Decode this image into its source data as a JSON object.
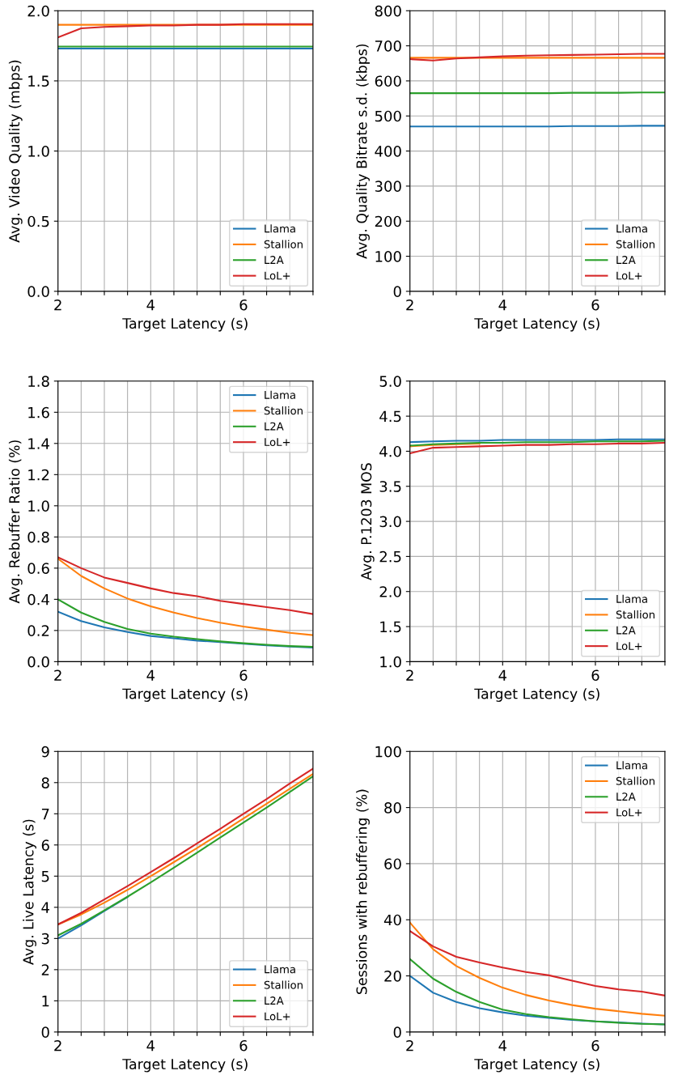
{
  "chart_data": [
    {
      "type": "line",
      "xlabel": "Target Latency (s)",
      "ylabel": "Avg. Video Quality (mbps)",
      "x": [
        2,
        2.5,
        3,
        3.5,
        4,
        4.5,
        5,
        5.5,
        6,
        6.5,
        7,
        7.5
      ],
      "xlim": [
        2,
        7.5
      ],
      "xticks": [
        2,
        {
          "value": 2.5,
          "label": null
        },
        {
          "value": 3,
          "label": null
        },
        {
          "value": 3.5,
          "label": null
        },
        4,
        {
          "value": 4.5,
          "label": null
        },
        {
          "value": 5,
          "label": null
        },
        {
          "value": 5.5,
          "label": null
        },
        6,
        {
          "value": 6.5,
          "label": null
        },
        {
          "value": 7,
          "label": null
        },
        {
          "value": 7.5,
          "label": null
        }
      ],
      "ylim": [
        0,
        2
      ],
      "yticks": [
        {
          "value": 0,
          "label": "0.0"
        },
        0.5,
        {
          "value": 1,
          "label": "1.0"
        },
        1.5,
        {
          "value": 2,
          "label": "2.0"
        }
      ],
      "grid": true,
      "legend": "bottom right",
      "series": [
        {
          "name": "Llama",
          "color": "#1f77b4",
          "values": [
            1.73,
            1.73,
            1.73,
            1.73,
            1.73,
            1.73,
            1.73,
            1.73,
            1.73,
            1.73,
            1.73,
            1.73
          ]
        },
        {
          "name": "Stallion",
          "color": "#ff7f0e",
          "values": [
            1.9,
            1.9,
            1.9,
            1.9,
            1.9,
            1.9,
            1.9,
            1.9,
            1.9,
            1.9,
            1.9,
            1.9
          ]
        },
        {
          "name": "L2A",
          "color": "#2ca02c",
          "values": [
            1.745,
            1.745,
            1.745,
            1.745,
            1.745,
            1.745,
            1.745,
            1.745,
            1.745,
            1.745,
            1.745,
            1.745
          ]
        },
        {
          "name": "LoL+",
          "color": "#d62728",
          "values": [
            1.81,
            1.875,
            1.885,
            1.89,
            1.895,
            1.895,
            1.9,
            1.9,
            1.905,
            1.905,
            1.905,
            1.905
          ]
        }
      ]
    },
    {
      "type": "line",
      "xlabel": "Target Latency (s)",
      "ylabel": "Avg. Quality Bitrate s.d. (kbps)",
      "x": [
        2,
        2.5,
        3,
        3.5,
        4,
        4.5,
        5,
        5.5,
        6,
        6.5,
        7,
        7.5
      ],
      "xlim": [
        2,
        7.5
      ],
      "xticks": [
        2,
        {
          "value": 2.5,
          "label": null
        },
        {
          "value": 3,
          "label": null
        },
        {
          "value": 3.5,
          "label": null
        },
        4,
        {
          "value": 4.5,
          "label": null
        },
        {
          "value": 5,
          "label": null
        },
        {
          "value": 5.5,
          "label": null
        },
        6,
        {
          "value": 6.5,
          "label": null
        },
        {
          "value": 7,
          "label": null
        },
        {
          "value": 7.5,
          "label": null
        }
      ],
      "ylim": [
        0,
        800
      ],
      "yticks": [
        0,
        100,
        200,
        300,
        400,
        500,
        600,
        700,
        800
      ],
      "grid": true,
      "legend": "bottom right",
      "series": [
        {
          "name": "Llama",
          "color": "#1f77b4",
          "values": [
            470,
            470,
            470,
            470,
            470,
            470,
            470,
            471,
            471,
            471,
            472,
            472
          ]
        },
        {
          "name": "Stallion",
          "color": "#ff7f0e",
          "values": [
            666,
            666,
            666,
            666,
            666,
            666,
            666,
            666,
            666,
            666,
            666,
            666
          ]
        },
        {
          "name": "L2A",
          "color": "#2ca02c",
          "values": [
            565,
            565,
            565,
            565,
            565,
            565,
            565,
            566,
            566,
            566,
            567,
            567
          ]
        },
        {
          "name": "LoL+",
          "color": "#d62728",
          "values": [
            662,
            658,
            664,
            667,
            670,
            672,
            673,
            674,
            675,
            676,
            677,
            677
          ]
        }
      ]
    },
    {
      "type": "line",
      "xlabel": "Target Latency (s)",
      "ylabel": "Avg. Rebuffer Ratio (%)",
      "x": [
        2,
        2.5,
        3,
        3.5,
        4,
        4.5,
        5,
        5.5,
        6,
        6.5,
        7,
        7.5
      ],
      "xlim": [
        2,
        7.5
      ],
      "xticks": [
        2,
        {
          "value": 2.5,
          "label": null
        },
        {
          "value": 3,
          "label": null
        },
        {
          "value": 3.5,
          "label": null
        },
        4,
        {
          "value": 4.5,
          "label": null
        },
        {
          "value": 5,
          "label": null
        },
        {
          "value": 5.5,
          "label": null
        },
        6,
        {
          "value": 6.5,
          "label": null
        },
        {
          "value": 7,
          "label": null
        },
        {
          "value": 7.5,
          "label": null
        }
      ],
      "ylim": [
        0,
        1.8
      ],
      "yticks": [
        {
          "value": 0,
          "label": "0.0"
        },
        0.2,
        0.4,
        0.6,
        0.8,
        {
          "value": 1,
          "label": "1.0"
        },
        1.2,
        1.4,
        1.6,
        1.8
      ],
      "grid": true,
      "legend": "top right",
      "series": [
        {
          "name": "Llama",
          "color": "#1f77b4",
          "values": [
            0.32,
            0.26,
            0.22,
            0.19,
            0.165,
            0.15,
            0.135,
            0.125,
            0.115,
            0.105,
            0.097,
            0.09
          ]
        },
        {
          "name": "Stallion",
          "color": "#ff7f0e",
          "values": [
            0.66,
            0.55,
            0.47,
            0.405,
            0.355,
            0.315,
            0.28,
            0.25,
            0.225,
            0.205,
            0.185,
            0.17
          ]
        },
        {
          "name": "L2A",
          "color": "#2ca02c",
          "values": [
            0.4,
            0.315,
            0.255,
            0.21,
            0.18,
            0.16,
            0.145,
            0.13,
            0.118,
            0.108,
            0.1,
            0.095
          ]
        },
        {
          "name": "LoL+",
          "color": "#d62728",
          "values": [
            0.67,
            0.6,
            0.54,
            0.505,
            0.47,
            0.44,
            0.42,
            0.39,
            0.37,
            0.35,
            0.33,
            0.305
          ]
        }
      ]
    },
    {
      "type": "line",
      "xlabel": "Target Latency (s)",
      "ylabel": "Avg. P.1203 MOS",
      "x": [
        2,
        2.5,
        3,
        3.5,
        4,
        4.5,
        5,
        5.5,
        6,
        6.5,
        7,
        7.5
      ],
      "xlim": [
        2,
        7.5
      ],
      "xticks": [
        2,
        {
          "value": 2.5,
          "label": null
        },
        {
          "value": 3,
          "label": null
        },
        {
          "value": 3.5,
          "label": null
        },
        4,
        {
          "value": 4.5,
          "label": null
        },
        {
          "value": 5,
          "label": null
        },
        {
          "value": 5.5,
          "label": null
        },
        6,
        {
          "value": 6.5,
          "label": null
        },
        {
          "value": 7,
          "label": null
        },
        {
          "value": 7.5,
          "label": null
        }
      ],
      "ylim": [
        1,
        5
      ],
      "yticks": [
        {
          "value": 1,
          "label": "1.0"
        },
        1.5,
        {
          "value": 2,
          "label": "2.0"
        },
        2.5,
        {
          "value": 3,
          "label": "3.0"
        },
        3.5,
        {
          "value": 4,
          "label": "4.0"
        },
        4.5,
        {
          "value": 5,
          "label": "5.0"
        }
      ],
      "grid": true,
      "legend": "bottom right",
      "series": [
        {
          "name": "Llama",
          "color": "#1f77b4",
          "values": [
            4.13,
            4.14,
            4.15,
            4.15,
            4.16,
            4.16,
            4.16,
            4.16,
            4.16,
            4.17,
            4.17,
            4.17
          ]
        },
        {
          "name": "Stallion",
          "color": "#ff7f0e",
          "values": [
            4.07,
            4.09,
            4.1,
            4.11,
            null,
            null,
            null,
            null,
            null,
            null,
            null,
            null
          ]
        },
        {
          "name": "L2A",
          "color": "#2ca02c",
          "values": [
            4.08,
            4.1,
            4.11,
            4.12,
            4.12,
            4.13,
            4.13,
            4.13,
            4.14,
            4.14,
            4.14,
            4.15
          ]
        },
        {
          "name": "LoL+",
          "color": "#d62728",
          "values": [
            3.97,
            4.05,
            4.06,
            4.07,
            4.08,
            4.09,
            4.09,
            4.1,
            4.1,
            4.11,
            4.11,
            4.12
          ]
        }
      ]
    },
    {
      "type": "line",
      "xlabel": "Target Latency (s)",
      "ylabel": "Avg. Live Latency (s)",
      "x": [
        2,
        2.5,
        3,
        3.5,
        4,
        4.5,
        5,
        5.5,
        6,
        6.5,
        7,
        7.5
      ],
      "xlim": [
        2,
        7.5
      ],
      "xticks": [
        2,
        {
          "value": 2.5,
          "label": null
        },
        {
          "value": 3,
          "label": null
        },
        {
          "value": 3.5,
          "label": null
        },
        4,
        {
          "value": 4.5,
          "label": null
        },
        {
          "value": 5,
          "label": null
        },
        {
          "value": 5.5,
          "label": null
        },
        6,
        {
          "value": 6.5,
          "label": null
        },
        {
          "value": 7,
          "label": null
        },
        {
          "value": 7.5,
          "label": null
        }
      ],
      "ylim": [
        0,
        9
      ],
      "yticks": [
        0,
        1,
        2,
        3,
        4,
        5,
        6,
        7,
        8,
        9
      ],
      "grid": true,
      "legend": "bottom right",
      "series": [
        {
          "name": "Llama",
          "color": "#1f77b4",
          "values": [
            3.0,
            3.42,
            3.88,
            4.33,
            null,
            null,
            null,
            null,
            null,
            null,
            null,
            null
          ]
        },
        {
          "name": "Stallion",
          "color": "#ff7f0e",
          "values": [
            3.45,
            3.77,
            4.15,
            4.56,
            5.0,
            5.45,
            5.9,
            6.37,
            6.85,
            7.32,
            7.8,
            8.28
          ]
        },
        {
          "name": "L2A",
          "color": "#2ca02c",
          "values": [
            3.1,
            3.47,
            3.9,
            4.34,
            4.8,
            5.27,
            5.75,
            6.24,
            6.72,
            7.2,
            7.7,
            8.2
          ]
        },
        {
          "name": "LoL+",
          "color": "#d62728",
          "values": [
            3.45,
            3.82,
            4.25,
            4.68,
            5.13,
            5.58,
            6.05,
            6.52,
            7.0,
            7.47,
            7.97,
            8.45
          ]
        }
      ]
    },
    {
      "type": "line",
      "xlabel": "Target Latency (s)",
      "ylabel": "Sessions with rebuffering (%)",
      "x": [
        2,
        2.5,
        3,
        3.5,
        4,
        4.5,
        5,
        5.5,
        6,
        6.5,
        7,
        7.5
      ],
      "xlim": [
        2,
        7.5
      ],
      "xticks": [
        2,
        {
          "value": 2.5,
          "label": null
        },
        {
          "value": 3,
          "label": null
        },
        {
          "value": 3.5,
          "label": null
        },
        4,
        {
          "value": 4.5,
          "label": null
        },
        {
          "value": 5,
          "label": null
        },
        {
          "value": 5.5,
          "label": null
        },
        6,
        {
          "value": 6.5,
          "label": null
        },
        {
          "value": 7,
          "label": null
        },
        {
          "value": 7.5,
          "label": null
        }
      ],
      "ylim": [
        0,
        100
      ],
      "yticks": [
        0,
        20,
        40,
        60,
        80,
        100
      ],
      "grid": true,
      "legend": "top right",
      "series": [
        {
          "name": "Llama",
          "color": "#1f77b4",
          "values": [
            20,
            14,
            10.7,
            8.5,
            7,
            5.8,
            5,
            4.3,
            3.8,
            3.4,
            3,
            2.7
          ]
        },
        {
          "name": "Stallion",
          "color": "#ff7f0e",
          "values": [
            39,
            29.5,
            23.5,
            19.3,
            15.8,
            13.2,
            11.2,
            9.6,
            8.3,
            7.4,
            6.5,
            5.8
          ]
        },
        {
          "name": "L2A",
          "color": "#2ca02c",
          "values": [
            26,
            19,
            14.3,
            10.7,
            8,
            6.4,
            5.3,
            4.5,
            3.8,
            3.3,
            2.9,
            2.7
          ]
        },
        {
          "name": "LoL+",
          "color": "#d62728",
          "values": [
            36,
            30.5,
            26.8,
            24.8,
            23,
            21.4,
            20.2,
            18.3,
            16.4,
            15.2,
            14.4,
            13
          ]
        }
      ]
    }
  ]
}
